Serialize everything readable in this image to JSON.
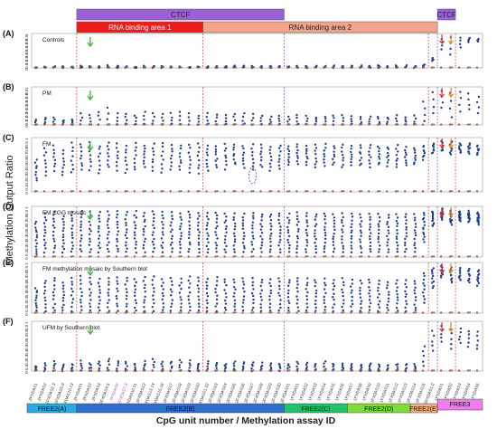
{
  "figure": {
    "y_axis_title": "Methylation Output  Ratio",
    "x_axis_title": "CpG unit number / Methylation assay ID"
  },
  "domains": [
    {
      "label": "CTCF",
      "color": "#9b5fd6"
    },
    {
      "label": "CTCF",
      "color": "#9b5fd6"
    },
    {
      "label": "RNA binding area 1",
      "color": "#ee1c1c"
    },
    {
      "label": "RNA binding area 2",
      "color": "#f4a48c"
    }
  ],
  "regions": [
    {
      "label": "FREE2(A)",
      "color": "#29aae1"
    },
    {
      "label": "FREE2(B)",
      "color": "#2e6fd0"
    },
    {
      "label": "FREE2(C)",
      "color": "#1fc46a"
    },
    {
      "label": "FREE2(D)",
      "color": "#7fdc3a"
    },
    {
      "label": "FREE2(E)",
      "color": "#f2b083"
    },
    {
      "label": "FREE3",
      "color": "#f07cf0"
    }
  ],
  "tick_labels": [
    "0",
    "0.1",
    "0.2",
    "0.3",
    "0.4",
    "0.5",
    "0.6",
    "0.7",
    "0.8",
    "0.9",
    "1"
  ],
  "chart_data": {
    "type": "scatter",
    "ylim": [
      0,
      1
    ],
    "categories": [
      "2FXDAS1",
      "2FXDAS2",
      "1FXDAS2.3",
      "1FXDAS5.9",
      "1FXDAS10.13",
      "2FXDAS1",
      "2FXDAS2",
      "2FXDAS3",
      "2FXDAS4.5",
      "2FXDAS6",
      "2FXDAS7.8",
      "2FXDAS10.11",
      "2FXDAS12",
      "2FXDAS13.14",
      "2FXDAS15.16",
      "2FXDAS17",
      "2FXDAS18",
      "2FXDAS19",
      "2FXDAS20",
      "2FXDAS21.22",
      "2FXDAS23",
      "2FXDAS24",
      "2FXDAS25",
      "2FXDAS26",
      "2FXDAS27",
      "2FXDAS28",
      "2FXDAS29",
      "2FXDAS30",
      "2FXDAS31",
      "1FXDAS1",
      "1FXDAS2",
      "1FXDAS3",
      "1FXDAS4",
      "1FXDAS5",
      "1FXDAS6",
      "1FXDAS7",
      "1FXDAS8",
      "1FXDAS9",
      "1FXDAS10",
      "1FXDAS11",
      "1FXDAS12",
      "1FXDAS13",
      "2FXDAS14",
      "2FXDAS15",
      "2FXDAS1.2",
      "1FXDAS1",
      "1FXDAS2",
      "1FXDAS3",
      "1FXDAS4",
      "1FXDAS5"
    ],
    "panels": [
      {
        "letter": "(A)",
        "title": "Controls",
        "high": [
          0.02,
          0.03,
          0.03,
          0.04,
          0.04,
          0.06,
          0.05,
          0.04,
          0.07,
          0.05,
          0.04,
          0.03,
          0.05,
          0.06,
          0.04,
          0.05,
          0.04,
          0.03,
          0.05,
          0.04,
          0.04,
          0.04,
          0.05,
          0.05,
          0.05,
          0.05,
          0.05,
          0.05,
          0.05,
          0.06,
          0.06,
          0.06,
          0.05,
          0.06,
          0.05,
          0.06,
          0.06,
          0.06,
          0.07,
          0.05,
          0.07,
          0.06,
          0.05,
          0.1,
          0.3,
          0.85,
          0.9,
          0.88,
          0.87,
          0.85
        ],
        "low": [
          0.01,
          0.01,
          0.01,
          0.01,
          0.01,
          0.01,
          0.01,
          0.01,
          0.01,
          0.01,
          0.01,
          0.01,
          0.01,
          0.01,
          0.01,
          0.01,
          0.01,
          0.01,
          0.01,
          0.01,
          0.01,
          0.01,
          0.01,
          0.01,
          0.01,
          0.01,
          0.01,
          0.01,
          0.01,
          0.01,
          0.01,
          0.01,
          0.01,
          0.01,
          0.01,
          0.01,
          0.01,
          0.01,
          0.01,
          0.01,
          0.01,
          0.01,
          0.01,
          0.03,
          0.2,
          0.55,
          0.4,
          0.6,
          0.75,
          0.78
        ],
        "spread": 0.05
      },
      {
        "letter": "(B)",
        "title": "PM",
        "high": [
          0.15,
          0.2,
          0.18,
          0.12,
          0.15,
          0.3,
          0.25,
          0.35,
          0.45,
          0.3,
          0.3,
          0.25,
          0.35,
          0.3,
          0.28,
          0.3,
          0.35,
          0.3,
          0.25,
          0.3,
          0.28,
          0.25,
          0.3,
          0.3,
          0.28,
          0.25,
          0.22,
          0.25,
          0.22,
          0.25,
          0.25,
          0.2,
          0.22,
          0.25,
          0.25,
          0.22,
          0.2,
          0.22,
          0.22,
          0.2,
          0.25,
          0.2,
          0.25,
          0.6,
          0.85,
          0.9,
          0.85,
          0.88,
          0.82,
          0.75
        ],
        "low": [
          0.02,
          0.02,
          0.02,
          0.02,
          0.02,
          0.02,
          0.02,
          0.02,
          0.02,
          0.02,
          0.02,
          0.02,
          0.02,
          0.02,
          0.02,
          0.02,
          0.02,
          0.02,
          0.02,
          0.02,
          0.02,
          0.02,
          0.02,
          0.02,
          0.02,
          0.02,
          0.02,
          0.02,
          0.02,
          0.02,
          0.02,
          0.02,
          0.02,
          0.02,
          0.02,
          0.02,
          0.02,
          0.02,
          0.02,
          0.02,
          0.02,
          0.02,
          0.02,
          0.1,
          0.3,
          0.45,
          0.2,
          0.35,
          0.4,
          0.3
        ],
        "spread": 0.08
      },
      {
        "letter": "(C)",
        "title": "FM",
        "high": [
          0.6,
          0.8,
          0.85,
          0.75,
          0.9,
          0.88,
          0.9,
          0.85,
          0.9,
          0.88,
          0.86,
          0.9,
          0.85,
          0.88,
          0.9,
          0.87,
          0.85,
          0.88,
          0.9,
          0.86,
          0.85,
          0.88,
          0.87,
          0.85,
          0.88,
          0.86,
          0.84,
          0.86,
          0.85,
          0.88,
          0.85,
          0.86,
          0.88,
          0.85,
          0.86,
          0.84,
          0.85,
          0.86,
          0.84,
          0.83,
          0.85,
          0.82,
          0.8,
          0.85,
          0.9,
          0.95,
          0.92,
          0.88,
          0.9,
          0.85
        ],
        "low": [
          0.2,
          0.3,
          0.4,
          0.3,
          0.35,
          0.4,
          0.4,
          0.35,
          0.45,
          0.4,
          0.35,
          0.4,
          0.45,
          0.4,
          0.35,
          0.4,
          0.4,
          0.35,
          0.35,
          0.4,
          0.45,
          0.42,
          0.5,
          0.45,
          0.4,
          0.45,
          0.4,
          0.42,
          0.5,
          0.5,
          0.5,
          0.45,
          0.48,
          0.5,
          0.45,
          0.5,
          0.48,
          0.45,
          0.5,
          0.48,
          0.45,
          0.5,
          0.5,
          0.6,
          0.7,
          0.75,
          0.7,
          0.72,
          0.7,
          0.68
        ],
        "spread": 0.4
      },
      {
        "letter": "(D)",
        "title": "FM CGG  mosaic",
        "high": [
          0.7,
          0.85,
          0.9,
          0.8,
          0.9,
          0.92,
          0.9,
          0.88,
          0.9,
          0.9,
          0.88,
          0.9,
          0.88,
          0.9,
          0.9,
          0.88,
          0.86,
          0.9,
          0.88,
          0.86,
          0.88,
          0.86,
          0.85,
          0.86,
          0.88,
          0.85,
          0.85,
          0.86,
          0.85,
          0.88,
          0.86,
          0.85,
          0.86,
          0.85,
          0.86,
          0.85,
          0.84,
          0.85,
          0.84,
          0.82,
          0.85,
          0.85,
          0.85,
          0.88,
          0.9,
          0.95,
          0.92,
          0.9,
          0.9,
          0.88
        ],
        "low": [
          0.05,
          0.1,
          0.1,
          0.1,
          0.1,
          0.1,
          0.1,
          0.1,
          0.1,
          0.1,
          0.1,
          0.1,
          0.1,
          0.1,
          0.1,
          0.1,
          0.1,
          0.1,
          0.1,
          0.1,
          0.1,
          0.1,
          0.1,
          0.1,
          0.1,
          0.1,
          0.1,
          0.1,
          0.1,
          0.1,
          0.1,
          0.1,
          0.1,
          0.1,
          0.1,
          0.1,
          0.1,
          0.1,
          0.1,
          0.1,
          0.1,
          0.1,
          0.1,
          0.3,
          0.6,
          0.75,
          0.65,
          0.7,
          0.7,
          0.65
        ],
        "spread": 0.8
      },
      {
        "letter": "(E)",
        "title": "FM methylation mosaic by Southern blot",
        "high": [
          0.5,
          0.65,
          0.7,
          0.6,
          0.7,
          0.72,
          0.7,
          0.68,
          0.7,
          0.72,
          0.7,
          0.68,
          0.7,
          0.72,
          0.68,
          0.7,
          0.68,
          0.72,
          0.7,
          0.68,
          0.7,
          0.68,
          0.66,
          0.7,
          0.68,
          0.66,
          0.66,
          0.68,
          0.66,
          0.7,
          0.68,
          0.66,
          0.68,
          0.66,
          0.68,
          0.66,
          0.64,
          0.66,
          0.65,
          0.62,
          0.65,
          0.64,
          0.64,
          0.8,
          0.9,
          0.95,
          0.9,
          0.88,
          0.88,
          0.85
        ],
        "low": [
          0.05,
          0.05,
          0.05,
          0.05,
          0.05,
          0.05,
          0.05,
          0.05,
          0.05,
          0.05,
          0.05,
          0.05,
          0.05,
          0.05,
          0.05,
          0.05,
          0.05,
          0.05,
          0.05,
          0.05,
          0.05,
          0.05,
          0.05,
          0.05,
          0.05,
          0.05,
          0.05,
          0.05,
          0.05,
          0.05,
          0.05,
          0.05,
          0.05,
          0.05,
          0.05,
          0.05,
          0.05,
          0.05,
          0.05,
          0.05,
          0.05,
          0.05,
          0.05,
          0.2,
          0.5,
          0.7,
          0.6,
          0.65,
          0.6,
          0.55
        ],
        "spread": 0.6
      },
      {
        "letter": "(F)",
        "title": "UFM by Southern blot",
        "high": [
          0.1,
          0.15,
          0.2,
          0.12,
          0.15,
          0.2,
          0.15,
          0.2,
          0.25,
          0.2,
          0.18,
          0.15,
          0.2,
          0.25,
          0.18,
          0.2,
          0.22,
          0.2,
          0.15,
          0.2,
          0.18,
          0.15,
          0.2,
          0.18,
          0.18,
          0.16,
          0.15,
          0.15,
          0.15,
          0.18,
          0.16,
          0.15,
          0.18,
          0.15,
          0.16,
          0.15,
          0.14,
          0.15,
          0.14,
          0.13,
          0.15,
          0.14,
          0.14,
          0.5,
          0.8,
          0.9,
          0.85,
          0.85,
          0.8,
          0.78
        ],
        "low": [
          0.01,
          0.01,
          0.01,
          0.01,
          0.01,
          0.01,
          0.01,
          0.01,
          0.01,
          0.01,
          0.01,
          0.01,
          0.01,
          0.01,
          0.01,
          0.01,
          0.01,
          0.01,
          0.01,
          0.01,
          0.01,
          0.01,
          0.01,
          0.01,
          0.01,
          0.01,
          0.01,
          0.01,
          0.01,
          0.01,
          0.01,
          0.01,
          0.01,
          0.01,
          0.01,
          0.01,
          0.01,
          0.01,
          0.01,
          0.01,
          0.01,
          0.01,
          0.01,
          0.1,
          0.4,
          0.6,
          0.45,
          0.55,
          0.5,
          0.45
        ],
        "spread": 0.15
      }
    ]
  }
}
